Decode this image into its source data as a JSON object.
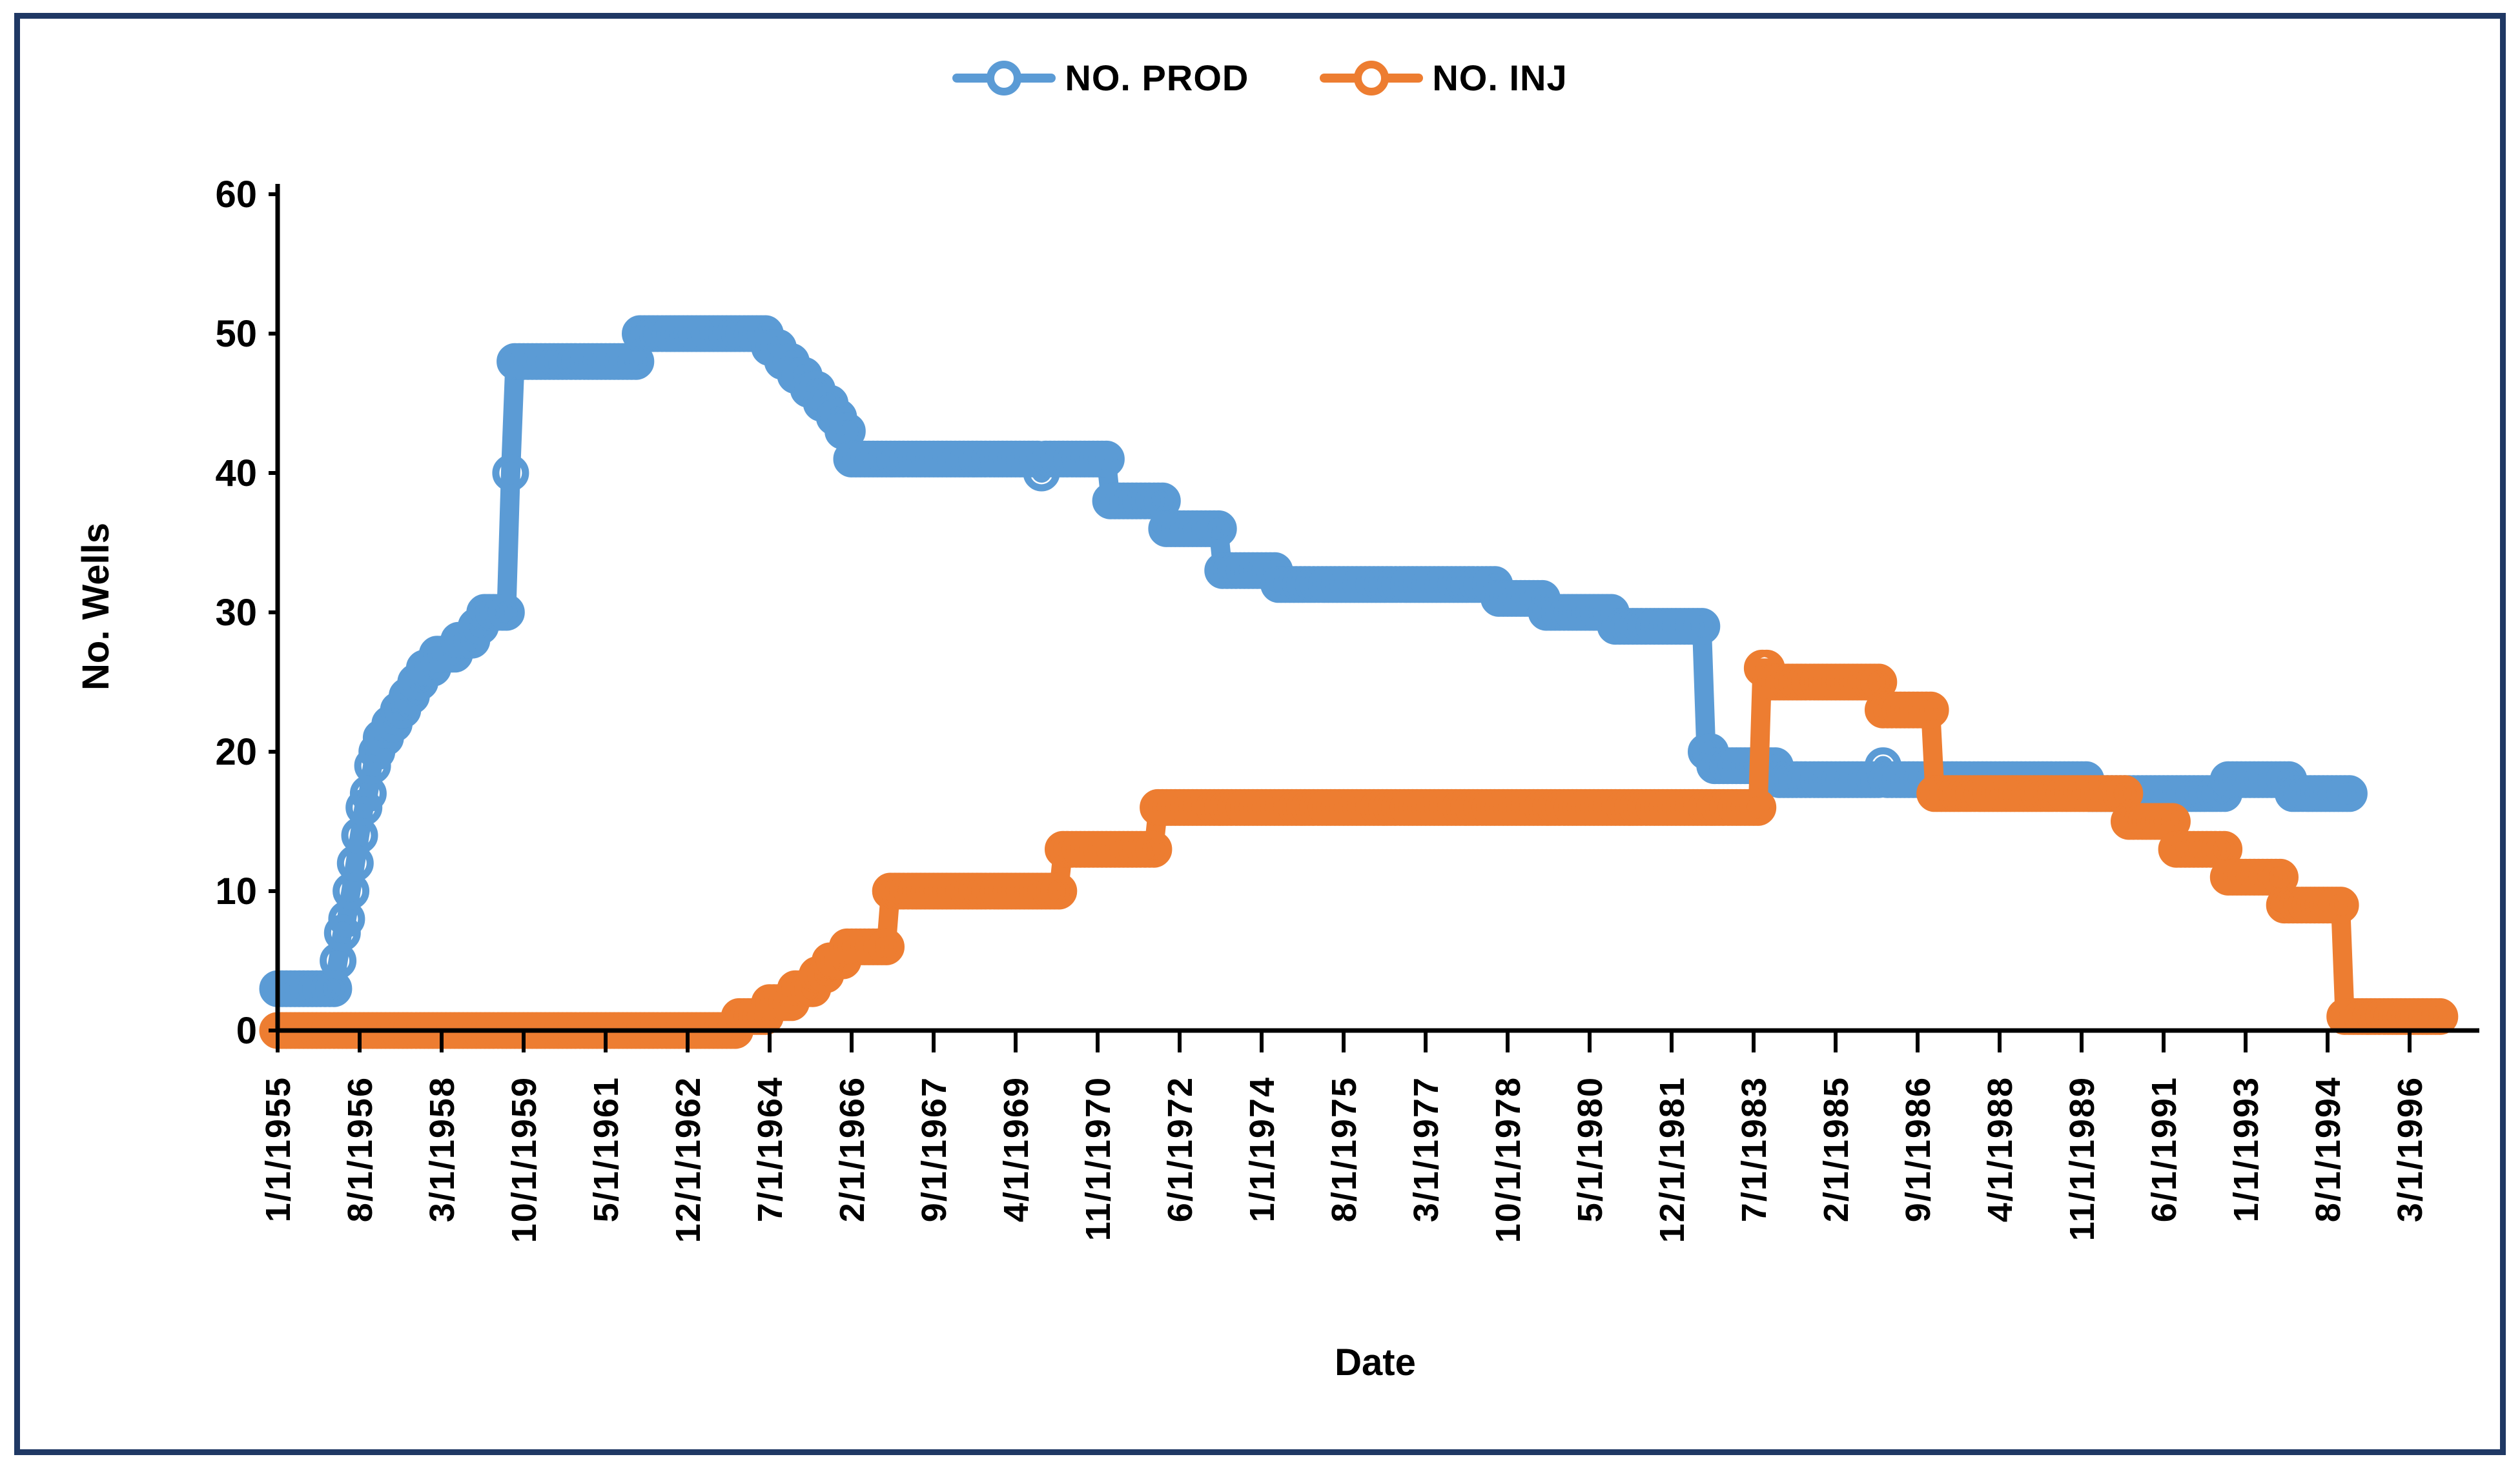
{
  "frame_color": "#1F3864",
  "legend": {
    "items": [
      {
        "label": "NO. PROD",
        "color": "#5B9BD5"
      },
      {
        "label": "NO. INJ",
        "color": "#ED7D31"
      }
    ]
  },
  "axes": {
    "y": {
      "title": "No. Wells",
      "ticks": [
        0,
        10,
        20,
        30,
        40,
        50,
        60
      ],
      "range": [
        0,
        60
      ]
    },
    "x": {
      "title": "Date",
      "tick_interval_months": 19,
      "tick_labels": [
        "1/1/1955",
        "8/1/1956",
        "3/1/1958",
        "10/1/1959",
        "5/1/1961",
        "12/1/1962",
        "7/1/1964",
        "2/1/1966",
        "9/1/1967",
        "4/1/1969",
        "11/1/1970",
        "6/1/1972",
        "1/1/1974",
        "8/1/1975",
        "3/1/1977",
        "10/1/1978",
        "5/1/1980",
        "12/1/1981",
        "7/1/1983",
        "2/1/1985",
        "9/1/1986",
        "4/1/1988",
        "11/1/1989",
        "6/1/1991",
        "1/1/1993",
        "8/1/1994",
        "3/1/1996"
      ]
    }
  },
  "chart_data": {
    "type": "line",
    "title": "",
    "xlabel": "Date",
    "ylabel": "No. Wells",
    "ylim": [
      0,
      60
    ],
    "grid": false,
    "legend_position": "top-center",
    "marker": "open-circle",
    "x_unit": "monthly, YYYY-MM; values hold until next step (step chart)",
    "series": [
      {
        "name": "NO. PROD",
        "color": "#5B9BD5",
        "end": "1995-01",
        "steps": [
          [
            "1955-01",
            3
          ],
          [
            "1956-03",
            5
          ],
          [
            "1956-04",
            7
          ],
          [
            "1956-05",
            8
          ],
          [
            "1956-06",
            10
          ],
          [
            "1956-07",
            12
          ],
          [
            "1956-08",
            14
          ],
          [
            "1956-09",
            16
          ],
          [
            "1956-10",
            17
          ],
          [
            "1956-11",
            19
          ],
          [
            "1956-12",
            20
          ],
          [
            "1957-01",
            21
          ],
          [
            "1957-03",
            22
          ],
          [
            "1957-05",
            23
          ],
          [
            "1957-07",
            24
          ],
          [
            "1957-09",
            25
          ],
          [
            "1957-11",
            26
          ],
          [
            "1958-02",
            27
          ],
          [
            "1958-07",
            28
          ],
          [
            "1958-11",
            29
          ],
          [
            "1959-01",
            30
          ],
          [
            "1959-07",
            40
          ],
          [
            "1959-08",
            48
          ],
          [
            "1962-01",
            50
          ],
          [
            "1964-07",
            49
          ],
          [
            "1964-10",
            48
          ],
          [
            "1965-01",
            47
          ],
          [
            "1965-04",
            46
          ],
          [
            "1965-07",
            45
          ],
          [
            "1965-10",
            44
          ],
          [
            "1965-12",
            43
          ],
          [
            "1966-02",
            41
          ],
          [
            "1969-10",
            40
          ],
          [
            "1969-11",
            41
          ],
          [
            "1971-02",
            38
          ],
          [
            "1972-03",
            36
          ],
          [
            "1973-04",
            33
          ],
          [
            "1974-05",
            32
          ],
          [
            "1978-08",
            31
          ],
          [
            "1979-07",
            30
          ],
          [
            "1980-11",
            29
          ],
          [
            "1982-08",
            20
          ],
          [
            "1982-10",
            19
          ],
          [
            "1984-01",
            18
          ],
          [
            "1986-01",
            19
          ],
          [
            "1986-02",
            18
          ],
          [
            "1990-01",
            17
          ],
          [
            "1992-09",
            18
          ],
          [
            "1993-12",
            17
          ]
        ]
      },
      {
        "name": "NO. INJ",
        "color": "#ED7D31",
        "end": "1996-10",
        "steps": [
          [
            "1955-01",
            0
          ],
          [
            "1963-12",
            1
          ],
          [
            "1964-07",
            2
          ],
          [
            "1965-01",
            3
          ],
          [
            "1965-06",
            4
          ],
          [
            "1965-09",
            5
          ],
          [
            "1966-01",
            6
          ],
          [
            "1966-11",
            10
          ],
          [
            "1970-03",
            13
          ],
          [
            "1972-01",
            16
          ],
          [
            "1983-09",
            26
          ],
          [
            "1983-11",
            25
          ],
          [
            "1986-01",
            23
          ],
          [
            "1987-01",
            17
          ],
          [
            "1990-10",
            15
          ],
          [
            "1991-09",
            13
          ],
          [
            "1992-09",
            11
          ],
          [
            "1993-10",
            9
          ],
          [
            "1994-12",
            1
          ]
        ]
      }
    ]
  }
}
